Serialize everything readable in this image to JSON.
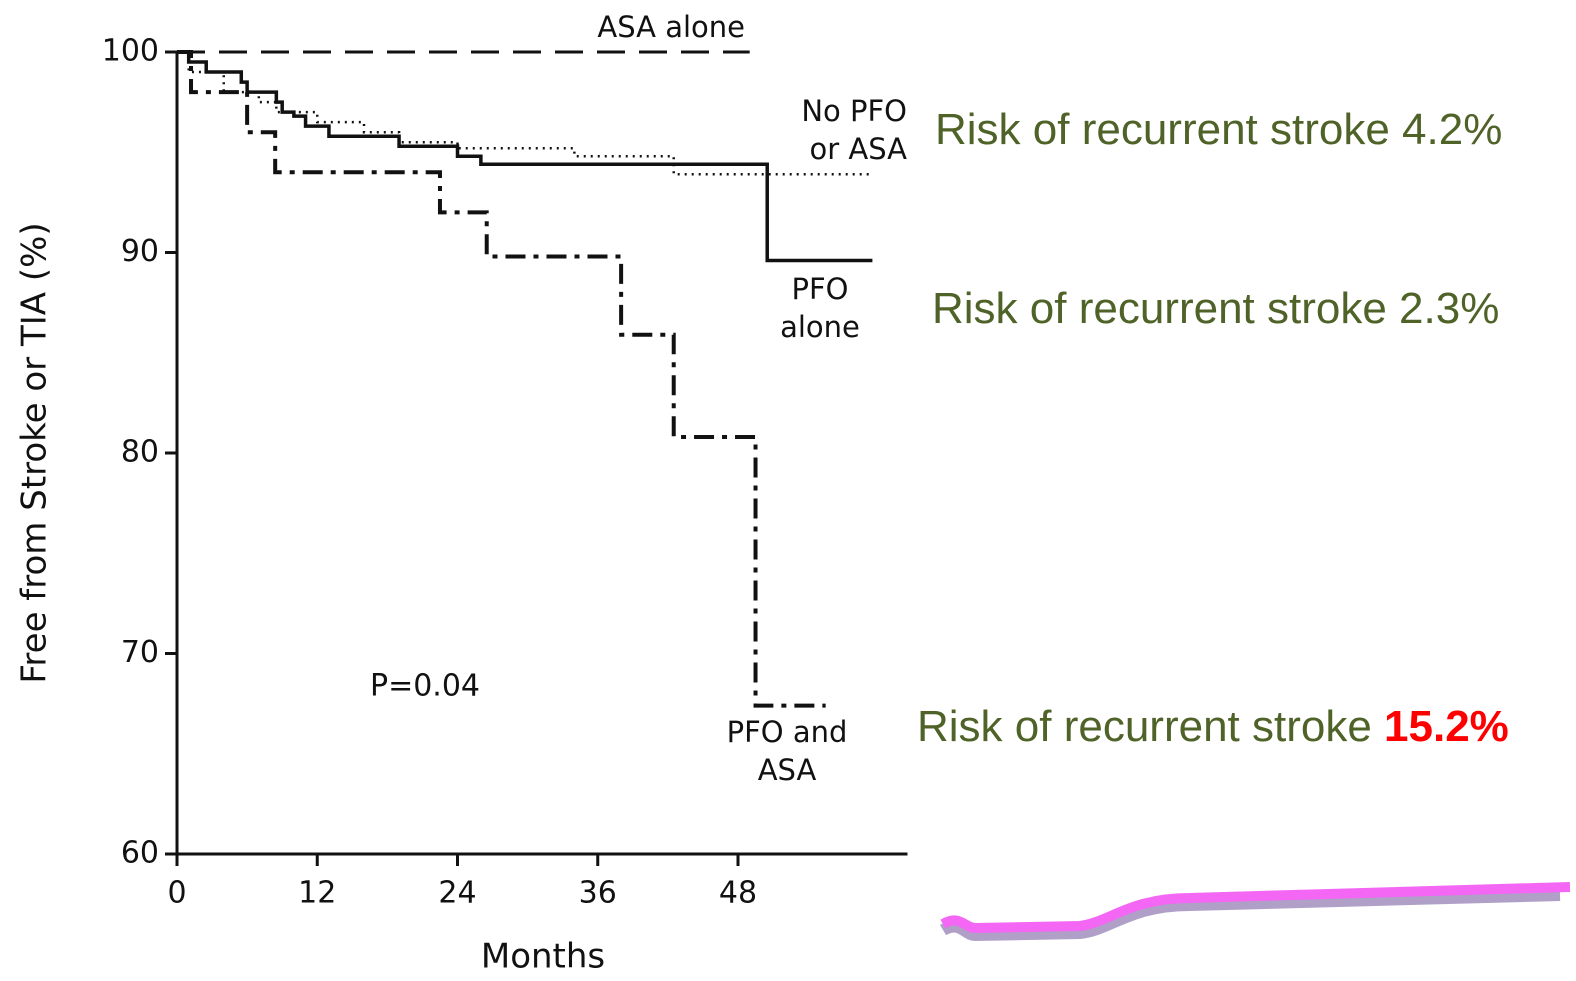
{
  "chart_data": {
    "type": "step",
    "xlabel": "Months",
    "ylabel": "Free from Stroke or TIA (%)",
    "xlim": [
      0,
      62.5
    ],
    "ylim": [
      60,
      100
    ],
    "xticks": [
      0,
      12,
      24,
      36,
      48
    ],
    "yticks": [
      60,
      70,
      80,
      90,
      100
    ],
    "annotation": "P=0.04",
    "series": [
      {
        "name": "ASA alone",
        "color": "#111111",
        "dash": "dashed",
        "x": [
          0,
          49
        ],
        "values": [
          100,
          100
        ]
      },
      {
        "name": "No PFO or ASA",
        "color": "#111111",
        "dash": "dotted",
        "x": [
          0,
          1,
          4,
          7,
          8.5,
          12,
          16,
          19,
          24,
          34,
          42.5,
          59.5
        ],
        "values": [
          100,
          99,
          98,
          97.5,
          97,
          96.5,
          96,
          95.5,
          95.2,
          94.8,
          93.9,
          93.9
        ]
      },
      {
        "name": "PFO alone",
        "color": "#111111",
        "dash": "solid",
        "x": [
          0,
          1,
          2.5,
          5.5,
          6,
          8.5,
          9,
          10,
          11,
          13,
          19,
          24,
          26,
          50.5,
          59.5
        ],
        "values": [
          100,
          99.5,
          99,
          98.5,
          98,
          97.5,
          97,
          96.8,
          96.3,
          95.8,
          95.3,
          94.8,
          94.4,
          89.6,
          89.6
        ]
      },
      {
        "name": "PFO and ASA",
        "color": "#111111",
        "dash": "dashdot",
        "x": [
          0,
          1.2,
          6,
          8.4,
          22.5,
          26.5,
          38,
          42.5,
          49.5,
          55.5
        ],
        "values": [
          100,
          98,
          96,
          94,
          92,
          89.8,
          85.9,
          80.8,
          67.4,
          67.4
        ]
      }
    ]
  },
  "notes": [
    {
      "text": "Risk of recurrent stroke 4.2%"
    },
    {
      "text": "Risk of recurrent stroke 2.3%"
    },
    {
      "text": "Risk of recurrent stroke",
      "highlight": "15.2%"
    }
  ]
}
